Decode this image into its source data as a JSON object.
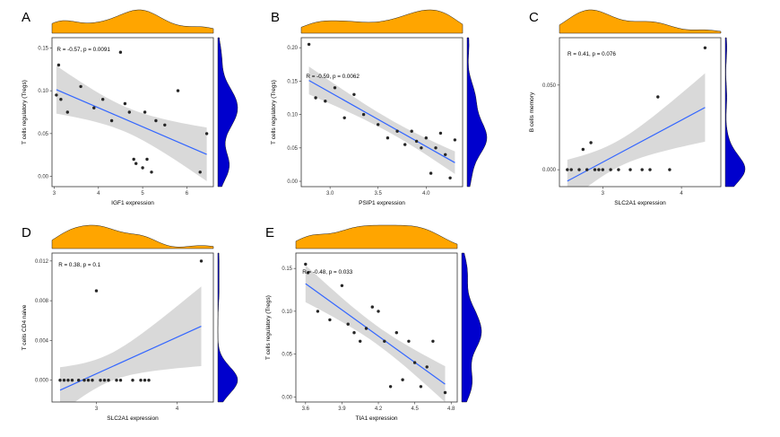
{
  "figure": {
    "background": "#ffffff",
    "colors": {
      "top_density": "#FFA500",
      "right_density": "#0000CD",
      "regression_line": "#3366FF",
      "ci_band": "#888888",
      "point": "#262626",
      "panel_border": "#333333",
      "axis_text": "#333333"
    }
  },
  "chart_data": [
    {
      "type": "scatter",
      "letter": "A",
      "annotation": "R = -0.57, p = 0.0091",
      "R": -0.57,
      "p": "0.0091",
      "xlabel": "IGF1 expression",
      "ylabel": "T cells regulatory (Tregs)",
      "xlim": [
        2.95,
        6.6
      ],
      "ylim": [
        -0.012,
        0.162
      ],
      "x_ticks": [
        3,
        4,
        5,
        6
      ],
      "x_tick_labels": [
        "3",
        "4",
        "5",
        "6"
      ],
      "y_ticks": [
        0,
        0.05,
        0.1,
        0.15
      ],
      "y_tick_labels": [
        "0.00",
        "0.05",
        "0.10",
        "0.15"
      ],
      "ann_pos": [
        0.03,
        0.09
      ],
      "points": [
        [
          3.05,
          0.095
        ],
        [
          3.1,
          0.13
        ],
        [
          3.15,
          0.09
        ],
        [
          3.3,
          0.075
        ],
        [
          3.6,
          0.105
        ],
        [
          3.9,
          0.08
        ],
        [
          4.1,
          0.09
        ],
        [
          4.3,
          0.065
        ],
        [
          4.5,
          0.145
        ],
        [
          4.6,
          0.085
        ],
        [
          4.7,
          0.075
        ],
        [
          4.8,
          0.02
        ],
        [
          4.85,
          0.015
        ],
        [
          5.0,
          0.01
        ],
        [
          5.05,
          0.075
        ],
        [
          5.1,
          0.02
        ],
        [
          5.2,
          0.005
        ],
        [
          5.3,
          0.065
        ],
        [
          5.5,
          0.06
        ],
        [
          5.8,
          0.1
        ],
        [
          6.3,
          0.005
        ],
        [
          6.45,
          0.05
        ]
      ]
    },
    {
      "type": "scatter",
      "letter": "B",
      "annotation": "R = -0.59, p = 0.0062",
      "R": -0.59,
      "p": "0.0062",
      "xlabel": "PSIP1 expression",
      "ylabel": "T cells regulatory (Tregs)",
      "xlim": [
        2.7,
        4.38
      ],
      "ylim": [
        -0.008,
        0.215
      ],
      "x_ticks": [
        3.0,
        3.5,
        4.0
      ],
      "x_tick_labels": [
        "3.0",
        "3.5",
        "4.0"
      ],
      "y_ticks": [
        0,
        0.05,
        0.1,
        0.15,
        0.2
      ],
      "y_tick_labels": [
        "0.00",
        "0.05",
        "0.10",
        "0.15",
        "0.20"
      ],
      "ann_pos": [
        0.03,
        0.27
      ],
      "points": [
        [
          2.78,
          0.205
        ],
        [
          2.85,
          0.125
        ],
        [
          2.95,
          0.12
        ],
        [
          3.05,
          0.14
        ],
        [
          3.15,
          0.095
        ],
        [
          3.25,
          0.13
        ],
        [
          3.35,
          0.1
        ],
        [
          3.5,
          0.085
        ],
        [
          3.6,
          0.065
        ],
        [
          3.7,
          0.075
        ],
        [
          3.78,
          0.055
        ],
        [
          3.85,
          0.075
        ],
        [
          3.9,
          0.06
        ],
        [
          3.95,
          0.05
        ],
        [
          4.0,
          0.065
        ],
        [
          4.05,
          0.012
        ],
        [
          4.1,
          0.05
        ],
        [
          4.15,
          0.072
        ],
        [
          4.2,
          0.04
        ],
        [
          4.25,
          0.005
        ],
        [
          4.3,
          0.062
        ]
      ]
    },
    {
      "type": "scatter",
      "letter": "C",
      "annotation": "R = 0.41, p = 0.076",
      "R": 0.41,
      "p": "0.076",
      "xlabel": "SLC2A1 expression",
      "ylabel": "B cells memory",
      "xlim": [
        2.45,
        4.5
      ],
      "ylim": [
        -0.01,
        0.078
      ],
      "x_ticks": [
        3,
        4
      ],
      "x_tick_labels": [
        "3",
        "4"
      ],
      "y_ticks": [
        0,
        0.05
      ],
      "y_tick_labels": [
        "0.000",
        "0.050"
      ],
      "ann_pos": [
        0.05,
        0.12
      ],
      "points": [
        [
          2.55,
          0.0
        ],
        [
          2.6,
          0.0
        ],
        [
          2.7,
          0.0
        ],
        [
          2.75,
          0.012
        ],
        [
          2.8,
          0.0
        ],
        [
          2.85,
          0.016
        ],
        [
          2.9,
          0.0
        ],
        [
          2.95,
          0.0
        ],
        [
          3.0,
          0.0
        ],
        [
          3.1,
          0.0
        ],
        [
          3.2,
          0.0
        ],
        [
          3.35,
          0.0
        ],
        [
          3.5,
          0.0
        ],
        [
          3.6,
          0.0
        ],
        [
          3.7,
          0.043
        ],
        [
          3.85,
          0.0
        ],
        [
          4.3,
          0.072
        ]
      ]
    },
    {
      "type": "scatter",
      "letter": "D",
      "annotation": "R = 0.38, p = 0.1",
      "R": 0.38,
      "p": "0.1",
      "xlabel": "SLC2A1 expression",
      "ylabel": "T cells CD4 naive",
      "xlim": [
        2.45,
        4.45
      ],
      "ylim": [
        -0.0022,
        0.0128
      ],
      "x_ticks": [
        3,
        4
      ],
      "x_tick_labels": [
        "3",
        "4"
      ],
      "y_ticks": [
        0,
        0.004,
        0.008,
        0.012
      ],
      "y_tick_labels": [
        "0.000",
        "0.004",
        "0.008",
        "0.012"
      ],
      "ann_pos": [
        0.04,
        0.09
      ],
      "points": [
        [
          2.55,
          0.0
        ],
        [
          2.6,
          0.0
        ],
        [
          2.65,
          0.0
        ],
        [
          2.7,
          0.0
        ],
        [
          2.78,
          0.0
        ],
        [
          2.85,
          0.0
        ],
        [
          2.9,
          0.0
        ],
        [
          2.95,
          0.0
        ],
        [
          3.0,
          0.009
        ],
        [
          3.05,
          0.0
        ],
        [
          3.1,
          0.0
        ],
        [
          3.15,
          0.0
        ],
        [
          3.25,
          0.0
        ],
        [
          3.3,
          0.0
        ],
        [
          3.45,
          0.0
        ],
        [
          3.55,
          0.0
        ],
        [
          3.6,
          0.0
        ],
        [
          3.65,
          0.0
        ],
        [
          4.3,
          0.012
        ]
      ]
    },
    {
      "type": "scatter",
      "letter": "E",
      "annotation": "R = -0.48, p = 0.033",
      "R": -0.48,
      "p": "0.033",
      "xlabel": "TIA1 expression",
      "ylabel": "T cells regulatory (Tregs)",
      "xlim": [
        3.52,
        4.85
      ],
      "ylim": [
        -0.006,
        0.168
      ],
      "x_ticks": [
        3.6,
        3.9,
        4.2,
        4.5,
        4.8
      ],
      "x_tick_labels": [
        "3.6",
        "3.9",
        "4.2",
        "4.5",
        "4.8"
      ],
      "y_ticks": [
        0,
        0.05,
        0.1,
        0.15
      ],
      "y_tick_labels": [
        "0.00",
        "0.05",
        "0.10",
        "0.15"
      ],
      "ann_pos": [
        0.04,
        0.14
      ],
      "points": [
        [
          3.6,
          0.155
        ],
        [
          3.62,
          0.145
        ],
        [
          3.7,
          0.1
        ],
        [
          3.8,
          0.09
        ],
        [
          3.9,
          0.13
        ],
        [
          3.95,
          0.085
        ],
        [
          4.0,
          0.075
        ],
        [
          4.05,
          0.065
        ],
        [
          4.1,
          0.08
        ],
        [
          4.15,
          0.105
        ],
        [
          4.2,
          0.1
        ],
        [
          4.25,
          0.065
        ],
        [
          4.3,
          0.012
        ],
        [
          4.35,
          0.075
        ],
        [
          4.4,
          0.02
        ],
        [
          4.45,
          0.065
        ],
        [
          4.5,
          0.04
        ],
        [
          4.55,
          0.012
        ],
        [
          4.6,
          0.035
        ],
        [
          4.65,
          0.065
        ],
        [
          4.75,
          0.005
        ]
      ]
    }
  ]
}
